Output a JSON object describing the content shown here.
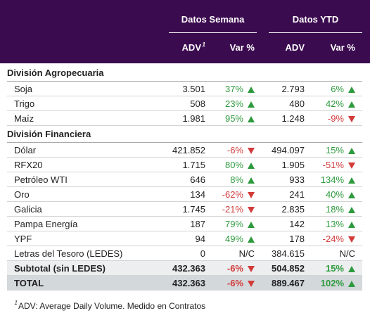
{
  "header": {
    "groups": [
      "Datos Semana",
      "Datos YTD"
    ],
    "columns": [
      "ADV",
      "Var %",
      "ADV",
      "Var %"
    ],
    "note_marker": "1"
  },
  "sections": [
    {
      "title": "División Agropecuaria",
      "rows": [
        [
          "Soja",
          "3.501",
          "37%",
          "2.793",
          "6%"
        ],
        [
          "Trigo",
          "508",
          "23%",
          "480",
          "42%"
        ],
        [
          "Maíz",
          "1.981",
          "95%",
          "1.248",
          "-9%"
        ]
      ]
    },
    {
      "title": "División Financiera",
      "rows": [
        [
          "Dólar",
          "421.852",
          "-6%",
          "494.097",
          "15%"
        ],
        [
          "RFX20",
          "1.715",
          "80%",
          "1.905",
          "-51%"
        ],
        [
          "Petróleo WTI",
          "646",
          "8%",
          "933",
          "134%"
        ],
        [
          "Oro",
          "134",
          "-62%",
          "241",
          "40%"
        ],
        [
          "Galicia",
          "1.745",
          "-21%",
          "2.835",
          "18%"
        ],
        [
          "Pampa Energía",
          "187",
          "79%",
          "142",
          "13%"
        ],
        [
          "YPF",
          "94",
          "49%",
          "178",
          "-24%"
        ],
        [
          "Letras del Tesoro (LEDES)",
          "0",
          "N/C",
          "384.615",
          "N/C"
        ]
      ]
    }
  ],
  "subtotal": [
    "Subtotal (sin LEDES)",
    "432.363",
    "-6%",
    "504.852",
    "15%"
  ],
  "total": [
    "TOTAL",
    "432.363",
    "-6%",
    "889.467",
    "102%"
  ],
  "footnote": {
    "marker": "1",
    "text": "ADV: Average Daily Volume. Medido en Contratos"
  }
}
